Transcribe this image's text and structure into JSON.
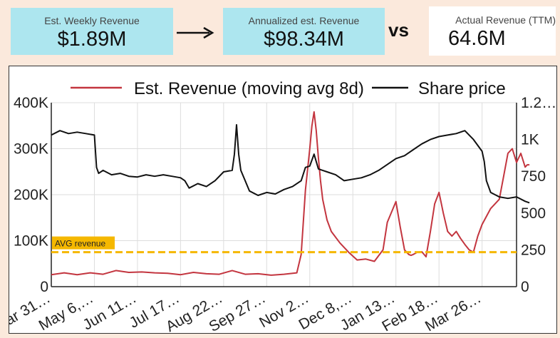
{
  "header": {
    "weekly": {
      "label": "Est. Weekly Revenue",
      "value": "$1.89M"
    },
    "annual": {
      "label": "Annualized est. Revenue",
      "value": "$98.34M"
    },
    "vs": "vs",
    "actual": {
      "label": "Actual Revenue (TTM)",
      "value": "64.6M"
    }
  },
  "colors": {
    "card": "#ade6ef",
    "revenue": "#c3353f",
    "price": "#111111",
    "avg_line": "#f5b800",
    "page_bg": "#fbe9dc"
  },
  "chart_data": {
    "type": "line",
    "x_tick_labels": [
      "Mar 31…",
      "May 6,…",
      "Jun 11…",
      "Jul 17…",
      "Aug 22…",
      "Sep 27…",
      "Nov 2…",
      "Dec 8,…",
      "Jan 13…",
      "Feb 18…",
      "Mar 26…"
    ],
    "y_left": {
      "ticks": [
        "0",
        "100K",
        "200K",
        "300K",
        "400K"
      ],
      "range": [
        0,
        400000
      ]
    },
    "y_right": {
      "ticks": [
        "250",
        "500",
        "750",
        "1K",
        "1.2…"
      ],
      "range": [
        0,
        1250
      ]
    },
    "grid": true,
    "legend_position": "top",
    "avg_label": "AVG revenue",
    "avg_value": 75000,
    "series": [
      {
        "name": "Est. Revenue (moving avg 8d)",
        "axis": "left",
        "x": [
          0,
          0.3,
          0.6,
          0.9,
          1.2,
          1.5,
          1.8,
          2.1,
          2.4,
          2.7,
          3.0,
          3.3,
          3.6,
          3.9,
          4.2,
          4.5,
          4.8,
          5.1,
          5.4,
          5.7,
          5.8,
          5.9,
          6.0,
          6.05,
          6.1,
          6.15,
          6.2,
          6.25,
          6.3,
          6.4,
          6.5,
          6.7,
          6.9,
          7.1,
          7.3,
          7.5,
          7.7,
          7.8,
          8.0,
          8.1,
          8.2,
          8.3,
          8.35,
          8.4,
          8.5,
          8.6,
          8.7,
          8.8,
          8.9,
          9.0,
          9.1,
          9.2,
          9.3,
          9.4,
          9.5,
          9.6,
          9.7,
          9.8,
          9.9,
          10.0,
          10.2,
          10.4,
          10.5,
          10.6,
          10.7,
          10.8,
          10.9,
          11.0,
          11.05,
          11.1
        ],
        "values": [
          26000,
          30000,
          26000,
          30000,
          27000,
          35000,
          31000,
          32000,
          30000,
          29000,
          26000,
          31000,
          28000,
          27000,
          35000,
          27000,
          28000,
          25000,
          27000,
          30000,
          70000,
          210000,
          300000,
          350000,
          380000,
          340000,
          280000,
          230000,
          190000,
          145000,
          120000,
          95000,
          75000,
          58000,
          60000,
          55000,
          80000,
          140000,
          185000,
          130000,
          80000,
          70000,
          68000,
          70000,
          75000,
          76000,
          65000,
          120000,
          180000,
          205000,
          160000,
          120000,
          110000,
          120000,
          105000,
          92000,
          80000,
          75000,
          110000,
          135000,
          170000,
          190000,
          240000,
          290000,
          300000,
          270000,
          290000,
          260000,
          265000,
          265000
        ]
      },
      {
        "name": "Share price",
        "axis": "right",
        "x": [
          0,
          0.2,
          0.4,
          0.6,
          0.8,
          1.0,
          1.05,
          1.1,
          1.2,
          1.4,
          1.6,
          1.8,
          2.0,
          2.2,
          2.4,
          2.6,
          2.8,
          3.0,
          3.1,
          3.2,
          3.4,
          3.6,
          3.8,
          4.0,
          4.2,
          4.25,
          4.3,
          4.35,
          4.4,
          4.5,
          4.6,
          4.8,
          5.0,
          5.2,
          5.4,
          5.6,
          5.8,
          5.9,
          6.0,
          6.1,
          6.2,
          6.3,
          6.4,
          6.6,
          6.8,
          7.0,
          7.2,
          7.4,
          7.6,
          7.8,
          8.0,
          8.2,
          8.4,
          8.6,
          8.8,
          9.0,
          9.2,
          9.4,
          9.6,
          9.8,
          10.0,
          10.05,
          10.1,
          10.2,
          10.4,
          10.6,
          10.8,
          11.0,
          11.1
        ],
        "values": [
          1030,
          1060,
          1040,
          1050,
          1040,
          1030,
          810,
          770,
          790,
          760,
          770,
          750,
          745,
          760,
          750,
          760,
          750,
          740,
          720,
          670,
          700,
          680,
          720,
          780,
          790,
          900,
          1100,
          900,
          790,
          720,
          650,
          620,
          640,
          630,
          660,
          680,
          720,
          810,
          820,
          900,
          800,
          790,
          780,
          760,
          720,
          730,
          740,
          760,
          790,
          830,
          870,
          890,
          930,
          970,
          1000,
          1020,
          1030,
          1040,
          1060,
          1000,
          920,
          850,
          720,
          640,
          610,
          600,
          610,
          580,
          570
        ]
      }
    ]
  }
}
